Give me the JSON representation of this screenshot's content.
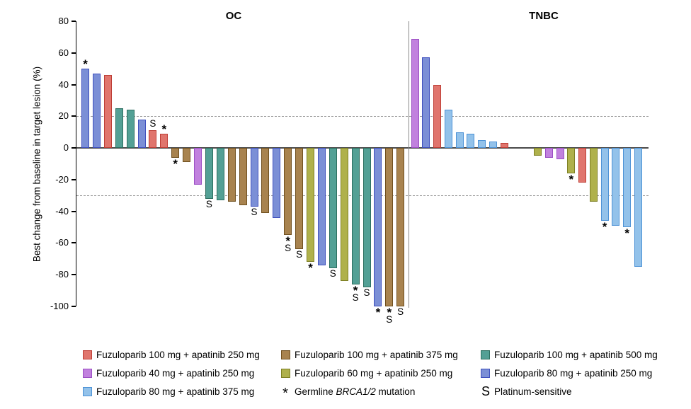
{
  "chart_data": {
    "type": "bar",
    "subtype": "waterfall",
    "title_left": "OC",
    "title_right": "TNBC",
    "ylabel": "Best change from baseline in target lesion (%)",
    "ylim": [
      -100,
      80
    ],
    "yticks": [
      80,
      60,
      40,
      20,
      0,
      -20,
      -40,
      -60,
      -80,
      -100
    ],
    "reference_lines": [
      20,
      -30
    ],
    "grid": false,
    "legend_position": "bottom",
    "marker_symbols": {
      "brca": "*",
      "ps": "S"
    },
    "treatments": {
      "fz100_ap250": {
        "label": "Fuzuloparib 100 mg + apatinib 250 mg",
        "fill": "#E0756D",
        "border": "#BE3E36"
      },
      "fz100_ap375": {
        "label": "Fuzuloparib 100 mg + apatinib 375 mg",
        "fill": "#A8834F",
        "border": "#70501F"
      },
      "fz100_ap500": {
        "label": "Fuzuloparib 100 mg + apatinib 500 mg",
        "fill": "#53A095",
        "border": "#2C6E5F"
      },
      "fz40_ap250": {
        "label": "Fuzuloparib 40 mg + apatinib 250 mg",
        "fill": "#C181DE",
        "border": "#9B4FC4"
      },
      "fz60_ap250": {
        "label": "Fuzuloparib 60 mg + apatinib 250 mg",
        "fill": "#AFB14C",
        "border": "#7E8024"
      },
      "fz80_ap250": {
        "label": "Fuzuloparib 80 mg + apatinib 250 mg",
        "fill": "#7B8FD6",
        "border": "#3F50BE"
      },
      "fz80_ap375": {
        "label": "Fuzuloparib 80 mg + apatinib 375 mg",
        "fill": "#93C2EA",
        "border": "#4D92D6"
      }
    },
    "groups": [
      {
        "name": "OC",
        "bars": [
          {
            "value": 50,
            "color": "fz80_ap250",
            "brca": true,
            "ps": false
          },
          {
            "value": 47,
            "color": "fz80_ap250",
            "brca": false,
            "ps": false
          },
          {
            "value": 46,
            "color": "fz100_ap250",
            "brca": false,
            "ps": false
          },
          {
            "value": 25,
            "color": "fz100_ap500",
            "brca": false,
            "ps": false
          },
          {
            "value": 24,
            "color": "fz100_ap500",
            "brca": false,
            "ps": false
          },
          {
            "value": 18,
            "color": "fz80_ap250",
            "brca": false,
            "ps": false
          },
          {
            "value": 11,
            "color": "fz100_ap250",
            "brca": false,
            "ps": true
          },
          {
            "value": 9,
            "color": "fz100_ap250",
            "brca": true,
            "ps": false
          },
          {
            "value": -6,
            "color": "fz100_ap375",
            "brca": true,
            "ps": false
          },
          {
            "value": -9,
            "color": "fz100_ap375",
            "brca": false,
            "ps": false
          },
          {
            "value": -23,
            "color": "fz40_ap250",
            "brca": false,
            "ps": false
          },
          {
            "value": -32,
            "color": "fz100_ap500",
            "brca": false,
            "ps": true
          },
          {
            "value": -33,
            "color": "fz100_ap500",
            "brca": false,
            "ps": false
          },
          {
            "value": -34,
            "color": "fz100_ap375",
            "brca": false,
            "ps": false
          },
          {
            "value": -36,
            "color": "fz100_ap375",
            "brca": false,
            "ps": false
          },
          {
            "value": -37,
            "color": "fz80_ap250",
            "brca": false,
            "ps": true
          },
          {
            "value": -41,
            "color": "fz100_ap375",
            "brca": false,
            "ps": false
          },
          {
            "value": -44,
            "color": "fz80_ap250",
            "brca": false,
            "ps": false
          },
          {
            "value": -55,
            "color": "fz100_ap375",
            "brca": true,
            "ps": true
          },
          {
            "value": -64,
            "color": "fz100_ap375",
            "brca": false,
            "ps": true
          },
          {
            "value": -72,
            "color": "fz60_ap250",
            "brca": true,
            "ps": false
          },
          {
            "value": -74,
            "color": "fz80_ap250",
            "brca": false,
            "ps": false
          },
          {
            "value": -76,
            "color": "fz100_ap500",
            "brca": false,
            "ps": true
          },
          {
            "value": -84,
            "color": "fz60_ap250",
            "brca": false,
            "ps": false
          },
          {
            "value": -86,
            "color": "fz100_ap500",
            "brca": true,
            "ps": true
          },
          {
            "value": -88,
            "color": "fz100_ap500",
            "brca": false,
            "ps": true
          },
          {
            "value": -100,
            "color": "fz80_ap250",
            "brca": true,
            "ps": false
          },
          {
            "value": -100,
            "color": "fz100_ap375",
            "brca": true,
            "ps": true
          },
          {
            "value": -100,
            "color": "fz100_ap375",
            "brca": false,
            "ps": true
          }
        ]
      },
      {
        "name": "TNBC",
        "bars": [
          {
            "value": 69,
            "color": "fz40_ap250",
            "brca": false,
            "ps": false
          },
          {
            "value": 57,
            "color": "fz80_ap250",
            "brca": false,
            "ps": false
          },
          {
            "value": 40,
            "color": "fz100_ap250",
            "brca": false,
            "ps": false
          },
          {
            "value": 24,
            "color": "fz80_ap375",
            "brca": false,
            "ps": false
          },
          {
            "value": 10,
            "color": "fz80_ap375",
            "brca": false,
            "ps": false
          },
          {
            "value": 9,
            "color": "fz80_ap375",
            "brca": false,
            "ps": false
          },
          {
            "value": 5,
            "color": "fz80_ap375",
            "brca": false,
            "ps": false
          },
          {
            "value": 4,
            "color": "fz80_ap375",
            "brca": false,
            "ps": false
          },
          {
            "value": 3,
            "color": "fz100_ap250",
            "brca": false,
            "ps": false
          },
          {
            "value": 0,
            "color": null,
            "brca": false,
            "ps": false
          },
          {
            "value": 0,
            "color": null,
            "brca": false,
            "ps": false
          },
          {
            "value": -5,
            "color": "fz60_ap250",
            "brca": false,
            "ps": false
          },
          {
            "value": -6,
            "color": "fz40_ap250",
            "brca": false,
            "ps": false
          },
          {
            "value": -7,
            "color": "fz40_ap250",
            "brca": false,
            "ps": false
          },
          {
            "value": -16,
            "color": "fz60_ap250",
            "brca": true,
            "ps": false
          },
          {
            "value": -22,
            "color": "fz100_ap250",
            "brca": false,
            "ps": false
          },
          {
            "value": -34,
            "color": "fz60_ap250",
            "brca": false,
            "ps": false
          },
          {
            "value": -46,
            "color": "fz80_ap375",
            "brca": true,
            "ps": false
          },
          {
            "value": -49,
            "color": "fz80_ap375",
            "brca": false,
            "ps": false
          },
          {
            "value": -50,
            "color": "fz80_ap375",
            "brca": true,
            "ps": false
          },
          {
            "value": -75,
            "color": "fz80_ap375",
            "brca": false,
            "ps": false
          }
        ]
      }
    ]
  },
  "legend": {
    "items": [
      {
        "kind": "swatch",
        "color": "fz100_ap250",
        "label": "Fuzuloparib 100 mg + apatinib 250 mg"
      },
      {
        "kind": "swatch",
        "color": "fz100_ap375",
        "label": "Fuzuloparib 100 mg + apatinib 375 mg"
      },
      {
        "kind": "swatch",
        "color": "fz100_ap500",
        "label": "Fuzuloparib 100 mg + apatinib 500 mg"
      },
      {
        "kind": "swatch",
        "color": "fz40_ap250",
        "label": "Fuzuloparib 40 mg + apatinib 250 mg"
      },
      {
        "kind": "swatch",
        "color": "fz60_ap250",
        "label": "Fuzuloparib 60 mg + apatinib 250 mg"
      },
      {
        "kind": "swatch",
        "color": "fz80_ap250",
        "label": "Fuzuloparib 80 mg + apatinib 250 mg"
      },
      {
        "kind": "swatch",
        "color": "fz80_ap375",
        "label": "Fuzuloparib 80 mg + apatinib 375 mg"
      },
      {
        "kind": "symbol",
        "symbol": "*",
        "prefix": "Germline ",
        "italic": "BRCA1/2",
        "suffix": " mutation"
      },
      {
        "kind": "symbol",
        "symbol": "S",
        "label": "Platinum-sensitive"
      }
    ]
  }
}
